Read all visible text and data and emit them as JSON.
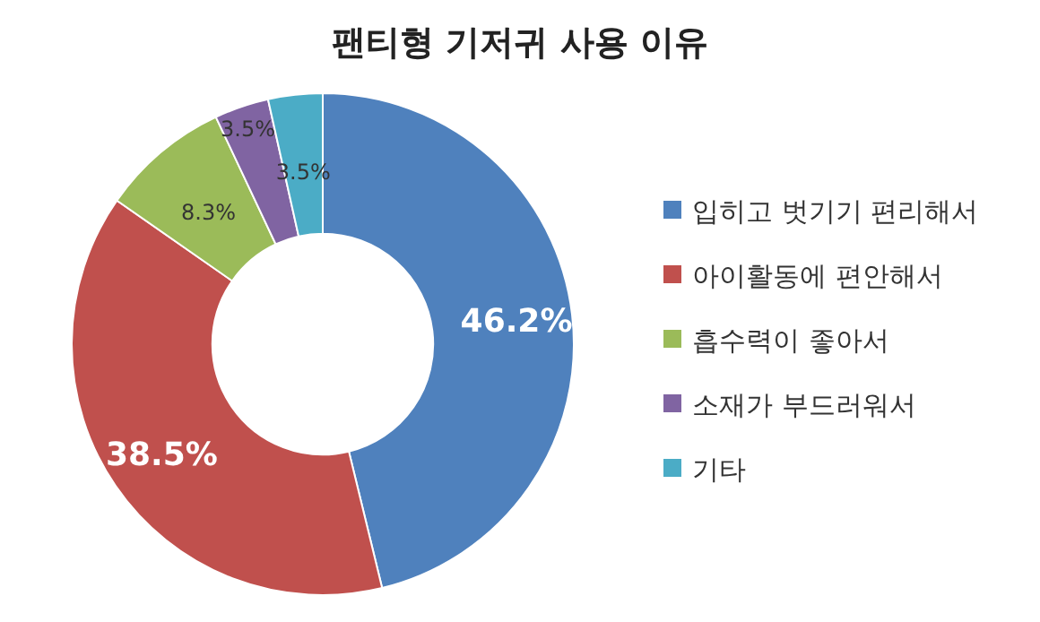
{
  "chart_data": {
    "type": "donut",
    "title": "팬티형 기저귀 사용 이유",
    "categories": [
      "입히고 벗기기 편리해서",
      "아이활동에 편안해서",
      "흡수력이 좋아서",
      "소재가 부드러워서",
      "기타"
    ],
    "values": [
      46.2,
      38.5,
      8.3,
      3.5,
      3.5
    ],
    "colors": [
      "#4f81bd",
      "#c0504d",
      "#9bbb59",
      "#8064a2",
      "#4bacc6"
    ],
    "value_labels": [
      "46.2%",
      "38.5%",
      "8.3%",
      "3.5%",
      "3.5%"
    ],
    "legend": "right"
  }
}
